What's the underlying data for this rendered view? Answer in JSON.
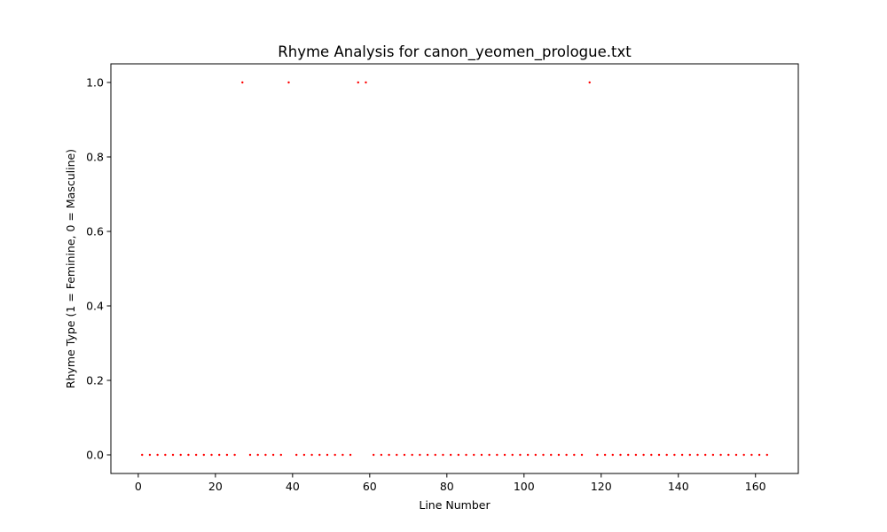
{
  "chart_data": {
    "type": "scatter",
    "title": "Rhyme Analysis for canon_yeomen_prologue.txt",
    "xlabel": "Line Number",
    "ylabel": "Rhyme Type (1 = Feminine, 0 = Masculine)",
    "xlim": [
      -7.1,
      171.1
    ],
    "ylim": [
      -0.05,
      1.05
    ],
    "xticks": [
      0,
      20,
      40,
      60,
      80,
      100,
      120,
      140,
      160
    ],
    "yticks": [
      0.0,
      0.2,
      0.4,
      0.6,
      0.8,
      1.0
    ],
    "ytick_labels": [
      "0.0",
      "0.2",
      "0.4",
      "0.6",
      "0.8",
      "1.0"
    ],
    "grid": false,
    "marker_color": "#ff0000",
    "series": [
      {
        "x": [
          1,
          3,
          5,
          7,
          9,
          11,
          13,
          15,
          17,
          19,
          21,
          23,
          25,
          27,
          29,
          31,
          33,
          35,
          37,
          39,
          41,
          43,
          45,
          47,
          49,
          51,
          53,
          55,
          57,
          59,
          61,
          63,
          65,
          67,
          69,
          71,
          73,
          75,
          77,
          79,
          81,
          83,
          85,
          87,
          89,
          91,
          93,
          95,
          97,
          99,
          101,
          103,
          105,
          107,
          109,
          111,
          113,
          115,
          117,
          119,
          121,
          123,
          125,
          127,
          129,
          131,
          133,
          135,
          137,
          139,
          141,
          143,
          145,
          147,
          149,
          151,
          153,
          155,
          157,
          159,
          161,
          163
        ],
        "y": [
          0,
          0,
          0,
          0,
          0,
          0,
          0,
          0,
          0,
          0,
          0,
          0,
          0,
          1,
          0,
          0,
          0,
          0,
          0,
          1,
          0,
          0,
          0,
          0,
          0,
          0,
          0,
          0,
          1,
          1,
          0,
          0,
          0,
          0,
          0,
          0,
          0,
          0,
          0,
          0,
          0,
          0,
          0,
          0,
          0,
          0,
          0,
          0,
          0,
          0,
          0,
          0,
          0,
          0,
          0,
          0,
          0,
          0,
          1,
          0,
          0,
          0,
          0,
          0,
          0,
          0,
          0,
          0,
          0,
          0,
          0,
          0,
          0,
          0,
          0,
          0,
          0,
          0,
          0,
          0,
          0,
          0
        ]
      }
    ]
  }
}
